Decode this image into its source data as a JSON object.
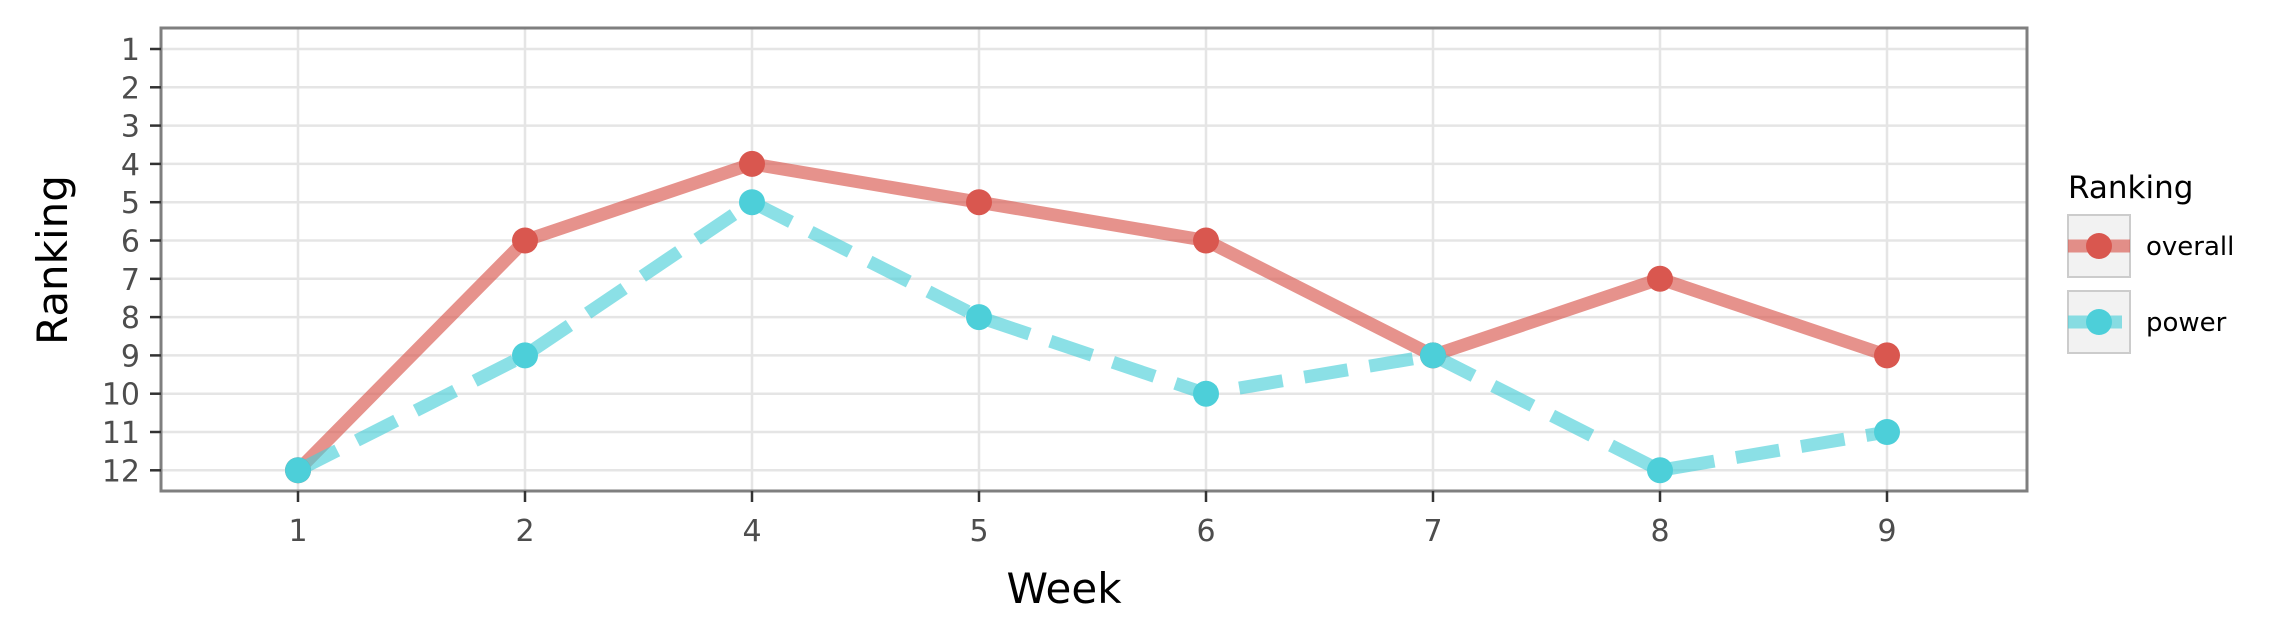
{
  "chart_data": {
    "type": "line",
    "xlabel": "Week",
    "ylabel": "Ranking",
    "categories": [
      "1",
      "2",
      "4",
      "5",
      "6",
      "7",
      "8",
      "9"
    ],
    "y_ticks": [
      "1",
      "2",
      "3",
      "4",
      "5",
      "6",
      "7",
      "8",
      "9",
      "10",
      "11",
      "12"
    ],
    "ylim": [
      12,
      1
    ],
    "y_reversed": true,
    "grid": true,
    "legend": {
      "title": "Ranking",
      "position": "right"
    },
    "series": [
      {
        "name": "overall",
        "values": [
          12,
          6,
          4,
          5,
          6,
          9,
          7,
          9
        ],
        "color": "#d9574f",
        "line_style": "solid"
      },
      {
        "name": "power",
        "values": [
          12,
          9,
          5,
          8,
          10,
          9,
          12,
          11
        ],
        "color": "#4dcfd9",
        "line_style": "dashed"
      }
    ]
  }
}
